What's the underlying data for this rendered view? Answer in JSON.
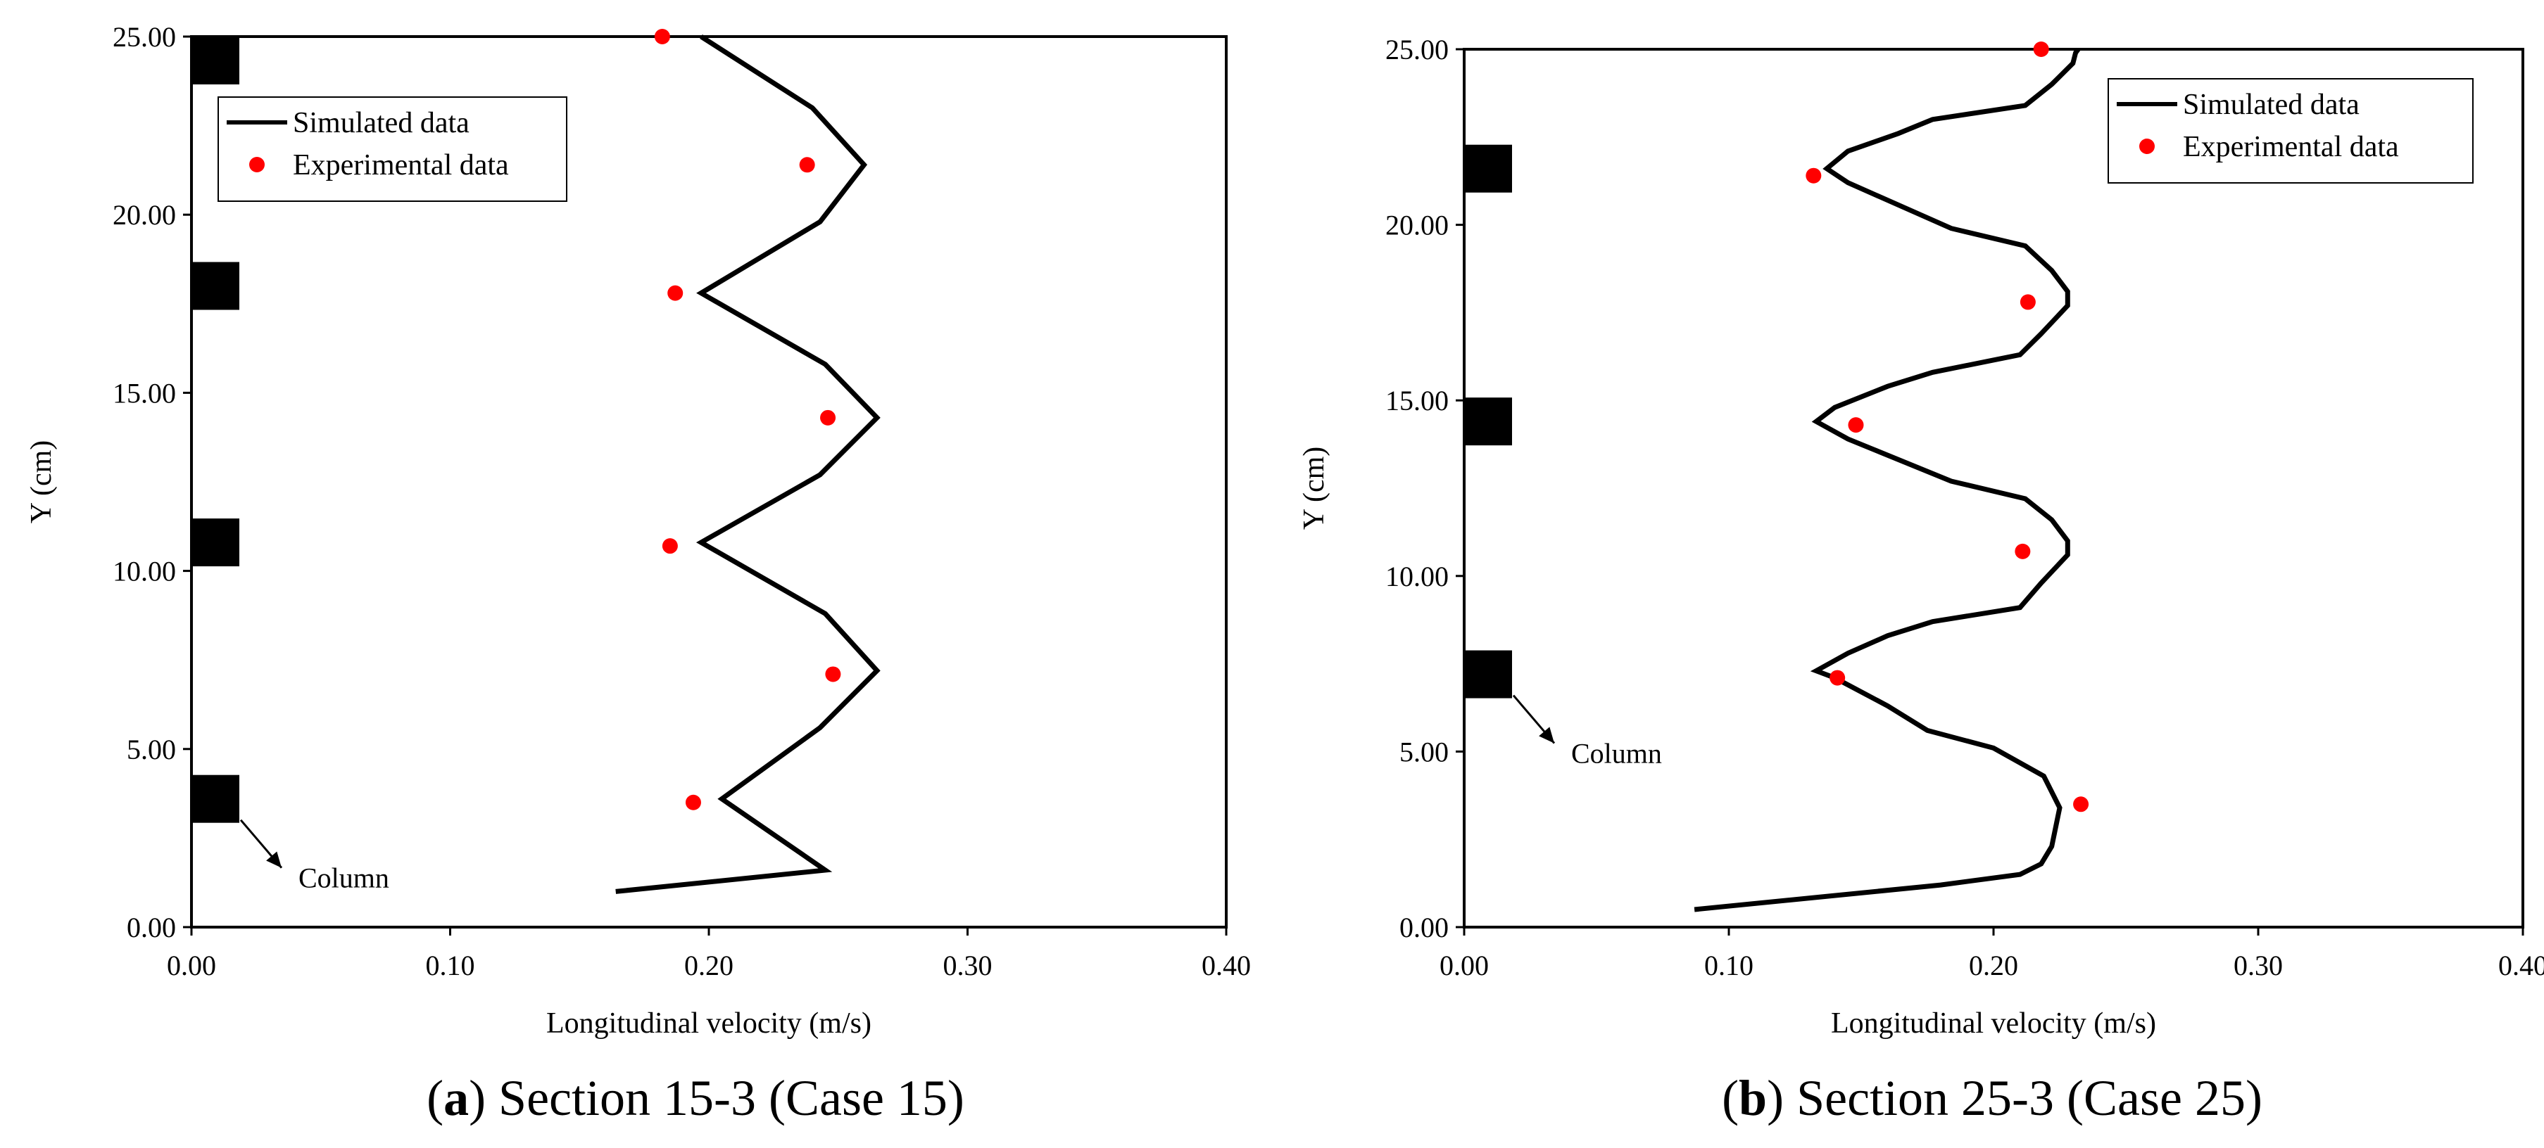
{
  "chart_data": [
    {
      "type": "line+scatter",
      "panel_label": "a",
      "caption": "Section 15-3 (Case 15)",
      "xlabel": "Longitudinal velocity (m/s)",
      "ylabel": "Y (cm)",
      "xlim": [
        0,
        0.4
      ],
      "ylim": [
        0,
        25
      ],
      "xticks": [
        "0.00",
        "0.10",
        "0.20",
        "0.30",
        "0.40"
      ],
      "yticks": [
        "0.00",
        "5.00",
        "10.00",
        "15.00",
        "20.00",
        "25.00"
      ],
      "legend": {
        "position": "top-left",
        "entries": [
          "Simulated data",
          "Experimental data"
        ]
      },
      "annotation": "Column",
      "columns_y": [
        3.6,
        10.8,
        18.0,
        25.0
      ],
      "series": [
        {
          "name": "Simulated data",
          "kind": "line",
          "color": "#000000",
          "points": [
            [
              0.164,
              1.0
            ],
            [
              0.245,
              1.6
            ],
            [
              0.205,
              3.6
            ],
            [
              0.243,
              5.6
            ],
            [
              0.265,
              7.2
            ],
            [
              0.245,
              8.8
            ],
            [
              0.197,
              10.8
            ],
            [
              0.243,
              12.7
            ],
            [
              0.265,
              14.3
            ],
            [
              0.245,
              15.8
            ],
            [
              0.197,
              17.8
            ],
            [
              0.243,
              19.8
            ],
            [
              0.26,
              21.4
            ],
            [
              0.24,
              23.0
            ],
            [
              0.197,
              25.0
            ]
          ]
        },
        {
          "name": "Experimental data",
          "kind": "scatter",
          "color": "#ff0000",
          "points": [
            [
              0.182,
              25.0
            ],
            [
              0.238,
              21.4
            ],
            [
              0.187,
              17.8
            ],
            [
              0.246,
              14.3
            ],
            [
              0.185,
              10.7
            ],
            [
              0.248,
              7.1
            ],
            [
              0.194,
              3.5
            ]
          ]
        }
      ]
    },
    {
      "type": "line+scatter",
      "panel_label": "b",
      "caption": "Section 25-3 (Case 25)",
      "xlabel": "Longitudinal velocity (m/s)",
      "ylabel": "Y (cm)",
      "xlim": [
        0,
        0.4
      ],
      "ylim": [
        0,
        25
      ],
      "xticks": [
        "0.00",
        "0.10",
        "0.20",
        "0.30",
        "0.40"
      ],
      "yticks": [
        "0.00",
        "5.00",
        "10.00",
        "15.00",
        "20.00",
        "25.00"
      ],
      "legend": {
        "position": "top-right",
        "entries": [
          "Simulated data",
          "Experimental data"
        ]
      },
      "annotation": "Column",
      "columns_y": [
        7.2,
        14.4,
        21.6
      ],
      "series": [
        {
          "name": "Simulated data",
          "kind": "line",
          "color": "#000000",
          "points": [
            [
              0.087,
              0.5
            ],
            [
              0.18,
              1.2
            ],
            [
              0.21,
              1.5
            ],
            [
              0.218,
              1.8
            ],
            [
              0.222,
              2.3
            ],
            [
              0.225,
              3.4
            ],
            [
              0.219,
              4.3
            ],
            [
              0.2,
              5.1
            ],
            [
              0.175,
              5.6
            ],
            [
              0.16,
              6.3
            ],
            [
              0.14,
              7.1
            ],
            [
              0.133,
              7.3
            ],
            [
              0.145,
              7.8
            ],
            [
              0.16,
              8.3
            ],
            [
              0.177,
              8.7
            ],
            [
              0.21,
              9.1
            ],
            [
              0.218,
              9.8
            ],
            [
              0.228,
              10.6
            ],
            [
              0.228,
              11.0
            ],
            [
              0.222,
              11.6
            ],
            [
              0.212,
              12.2
            ],
            [
              0.184,
              12.7
            ],
            [
              0.145,
              13.9
            ],
            [
              0.133,
              14.4
            ],
            [
              0.14,
              14.8
            ],
            [
              0.16,
              15.4
            ],
            [
              0.177,
              15.8
            ],
            [
              0.21,
              16.3
            ],
            [
              0.218,
              16.9
            ],
            [
              0.228,
              17.7
            ],
            [
              0.228,
              18.1
            ],
            [
              0.222,
              18.7
            ],
            [
              0.212,
              19.4
            ],
            [
              0.184,
              19.9
            ],
            [
              0.145,
              21.2
            ],
            [
              0.137,
              21.6
            ],
            [
              0.145,
              22.1
            ],
            [
              0.164,
              22.6
            ],
            [
              0.177,
              23.0
            ],
            [
              0.212,
              23.4
            ],
            [
              0.222,
              24.0
            ],
            [
              0.23,
              24.6
            ],
            [
              0.231,
              24.9
            ],
            [
              0.232,
              25.0
            ]
          ]
        },
        {
          "name": "Experimental data",
          "kind": "scatter",
          "color": "#ff0000",
          "points": [
            [
              0.218,
              25.0
            ],
            [
              0.132,
              21.4
            ],
            [
              0.213,
              17.8
            ],
            [
              0.148,
              14.3
            ],
            [
              0.211,
              10.7
            ],
            [
              0.141,
              7.1
            ],
            [
              0.233,
              3.5
            ]
          ]
        }
      ]
    }
  ]
}
